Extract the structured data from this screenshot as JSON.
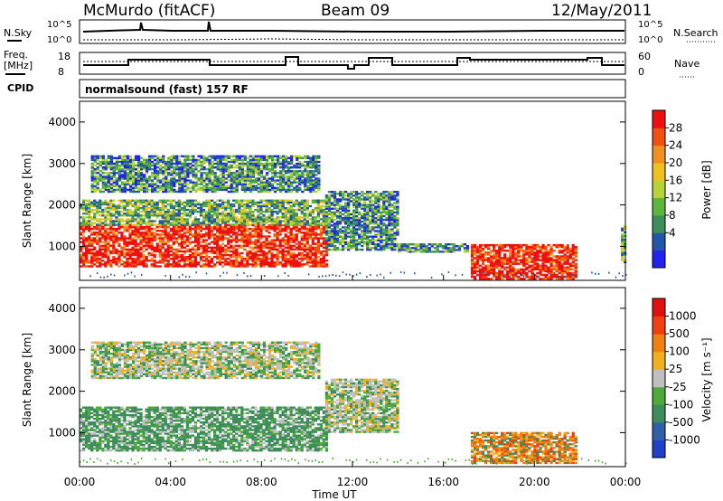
{
  "header": {
    "station": "McMurdo (fitACF)",
    "beam": "Beam 09",
    "date": "12/May/2011",
    "cpid_label": "CPID",
    "mode": "normalsound (fast) 157 RF"
  },
  "noise_panel": {
    "left_label": "N.Sky",
    "right_label": "N.Search",
    "left_ticks": [
      "10^5",
      "10^0"
    ],
    "right_ticks": [
      "10^5",
      "10^0"
    ]
  },
  "freq_panel": {
    "left_label_1": "Freq.",
    "left_label_2": "[MHz]",
    "right_label": "Nave",
    "left_ticks": [
      "18",
      "8"
    ],
    "right_ticks": [
      "60",
      "0"
    ]
  },
  "chart_data": [
    {
      "type": "heatmap",
      "name": "Power",
      "ylabel": "Slant Range [km]",
      "yticks": [
        "4000",
        "3000",
        "2000",
        "1000"
      ],
      "ylim": [
        180,
        4500
      ],
      "xlim": [
        0,
        24
      ],
      "xunit": "hours UT",
      "colorbar_label": "Power [dB]",
      "colorbar_ticks": [
        "28",
        "24",
        "20",
        "16",
        "12",
        "8",
        "4"
      ],
      "colorbar_colors": [
        "#2222ee",
        "#2355a8",
        "#3c8f5b",
        "#5db53e",
        "#b7d33a",
        "#f0c020",
        "#f09020",
        "#f05010",
        "#ee1010"
      ],
      "regions": [
        {
          "t0": 0.0,
          "t1": 10.8,
          "r0": 500,
          "r1": 1500,
          "level": "high"
        },
        {
          "t0": 0.0,
          "t1": 10.8,
          "r0": 1500,
          "r1": 2100,
          "level": "mid"
        },
        {
          "t0": 0.5,
          "t1": 10.5,
          "r0": 2300,
          "r1": 3200,
          "level": "low"
        },
        {
          "t0": 10.8,
          "t1": 14.0,
          "r0": 900,
          "r1": 2300,
          "level": "low"
        },
        {
          "t0": 14.0,
          "t1": 17.0,
          "r0": 850,
          "r1": 1050,
          "level": "low"
        },
        {
          "t0": 17.2,
          "t1": 21.8,
          "r0": 200,
          "r1": 1050,
          "level": "high"
        },
        {
          "t0": 23.8,
          "t1": 24.0,
          "r0": 600,
          "r1": 1500,
          "level": "mid"
        }
      ]
    },
    {
      "type": "heatmap",
      "name": "Velocity",
      "ylabel": "Slant Range [km]",
      "yticks": [
        "4000",
        "3000",
        "2000",
        "1000"
      ],
      "ylim": [
        180,
        4500
      ],
      "xlim": [
        0,
        24
      ],
      "xunit": "hours UT",
      "colorbar_label": "Velocity [m s⁻¹]",
      "colorbar_ticks": [
        "1000",
        "500",
        "100",
        "25",
        "-25",
        "-100",
        "-500",
        "-1000"
      ],
      "colorbar_colors": [
        "#2040c8",
        "#2f5fa8",
        "#3c8c5c",
        "#4faa3c",
        "#c0c0c0",
        "#f0b020",
        "#f08010",
        "#f04010",
        "#e01010"
      ],
      "regions": [
        {
          "t0": 0.0,
          "t1": 10.8,
          "r0": 550,
          "r1": 1600,
          "level": "v_green"
        },
        {
          "t0": 0.5,
          "t1": 10.5,
          "r0": 2300,
          "r1": 3200,
          "level": "v_mix"
        },
        {
          "t0": 10.8,
          "t1": 14.0,
          "r0": 1000,
          "r1": 2300,
          "level": "v_mix"
        },
        {
          "t0": 17.2,
          "t1": 21.8,
          "r0": 250,
          "r1": 1000,
          "level": "v_orange"
        }
      ]
    }
  ],
  "xaxis": {
    "ticks": [
      "00:00",
      "04:00",
      "08:00",
      "12:00",
      "16:00",
      "20:00",
      "00:00"
    ],
    "label": "Time UT"
  }
}
